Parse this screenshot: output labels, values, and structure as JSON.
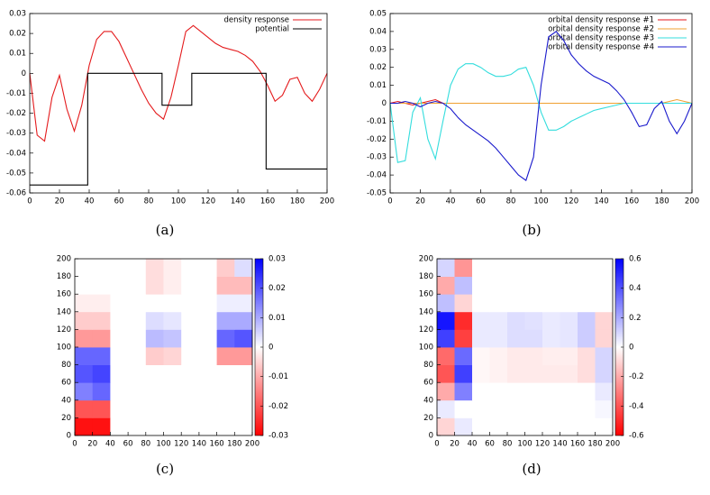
{
  "chart_data": [
    {
      "type": "line",
      "caption": "(a)",
      "legend": "top-right",
      "xlim": [
        0,
        200
      ],
      "ylim": [
        -0.06,
        0.03
      ],
      "xticks": [
        0,
        20,
        40,
        60,
        80,
        100,
        120,
        140,
        160,
        180,
        200
      ],
      "yticks": [
        -0.06,
        -0.05,
        -0.04,
        -0.03,
        -0.02,
        -0.01,
        0,
        0.01,
        0.02,
        0.03
      ],
      "x": [
        0,
        5,
        10,
        15,
        20,
        25,
        30,
        35,
        40,
        45,
        50,
        55,
        60,
        65,
        70,
        75,
        80,
        85,
        90,
        95,
        100,
        105,
        110,
        115,
        120,
        125,
        130,
        135,
        140,
        145,
        150,
        155,
        160,
        165,
        170,
        175,
        180,
        185,
        190,
        195,
        200
      ],
      "series": [
        {
          "name": "density response",
          "color": "#e41a1c",
          "values": [
            0,
            -0.031,
            -0.034,
            -0.012,
            -0.001,
            -0.018,
            -0.029,
            -0.016,
            0.004,
            0.017,
            0.021,
            0.021,
            0.016,
            0.008,
            0.0,
            -0.008,
            -0.015,
            -0.02,
            -0.023,
            -0.012,
            0.004,
            0.021,
            0.024,
            0.021,
            0.018,
            0.015,
            0.013,
            0.012,
            0.011,
            0.009,
            0.006,
            0.001,
            -0.006,
            -0.014,
            -0.011,
            -0.003,
            -0.002,
            -0.01,
            -0.014,
            -0.008,
            0
          ]
        },
        {
          "name": "potential",
          "color": "#000000",
          "x": [
            0,
            39,
            39,
            89,
            89,
            109,
            109,
            159,
            159,
            200
          ],
          "values": [
            -0.056,
            -0.056,
            0,
            0,
            -0.016,
            -0.016,
            0,
            0,
            -0.048,
            -0.048
          ]
        }
      ]
    },
    {
      "type": "line",
      "caption": "(b)",
      "legend": "top-right",
      "xlim": [
        0,
        200
      ],
      "ylim": [
        -0.05,
        0.05
      ],
      "xticks": [
        0,
        20,
        40,
        60,
        80,
        100,
        120,
        140,
        160,
        180,
        200
      ],
      "yticks": [
        -0.05,
        -0.04,
        -0.03,
        -0.02,
        -0.01,
        0,
        0.01,
        0.02,
        0.03,
        0.04,
        0.05
      ],
      "x": [
        0,
        5,
        10,
        15,
        20,
        25,
        30,
        35,
        40,
        45,
        50,
        55,
        60,
        65,
        70,
        75,
        80,
        85,
        90,
        95,
        100,
        105,
        110,
        115,
        120,
        125,
        130,
        135,
        140,
        145,
        150,
        155,
        160,
        165,
        170,
        175,
        180,
        185,
        190,
        195,
        200
      ],
      "series": [
        {
          "name": "orbital density response #1",
          "color": "#e41a1c",
          "values": [
            0,
            0.001,
            0,
            -0.001,
            0,
            0.001,
            0.002,
            0,
            0,
            0,
            0,
            0,
            0,
            0,
            0,
            0,
            0,
            0,
            0,
            0,
            0,
            0,
            0,
            0,
            0,
            0,
            0,
            0,
            0,
            0,
            0,
            0,
            0,
            0,
            0,
            0,
            0,
            0,
            0,
            0,
            0
          ]
        },
        {
          "name": "orbital density response #2",
          "color": "#f0a030",
          "values": [
            0,
            0,
            0,
            0,
            0,
            0,
            0,
            0,
            0,
            0,
            0,
            0,
            0,
            0,
            0,
            0,
            0,
            0,
            0,
            0,
            0,
            0,
            0,
            0,
            0,
            0,
            0,
            0,
            0,
            0,
            0,
            0,
            0,
            0,
            0,
            0,
            0,
            0.001,
            0.002,
            0.001,
            0
          ]
        },
        {
          "name": "orbital density response #3",
          "color": "#33dddd",
          "values": [
            0,
            -0.033,
            -0.032,
            -0.005,
            0.003,
            -0.02,
            -0.031,
            -0.01,
            0.01,
            0.019,
            0.022,
            0.022,
            0.02,
            0.017,
            0.015,
            0.015,
            0.016,
            0.019,
            0.02,
            0.01,
            -0.005,
            -0.015,
            -0.015,
            -0.013,
            -0.01,
            -0.008,
            -0.006,
            -0.004,
            -0.003,
            -0.002,
            -0.001,
            0,
            0,
            0,
            0,
            0,
            0,
            0,
            0,
            0,
            0
          ]
        },
        {
          "name": "orbital density response #4",
          "color": "#1a1acc",
          "values": [
            0,
            0,
            0.001,
            0,
            -0.002,
            0,
            0.001,
            0,
            -0.003,
            -0.008,
            -0.012,
            -0.015,
            -0.018,
            -0.021,
            -0.025,
            -0.03,
            -0.035,
            -0.04,
            -0.043,
            -0.03,
            0.01,
            0.037,
            0.04,
            0.035,
            0.027,
            0.022,
            0.018,
            0.015,
            0.013,
            0.011,
            0.007,
            0.002,
            -0.005,
            -0.013,
            -0.012,
            -0.003,
            0.001,
            -0.01,
            -0.017,
            -0.01,
            0
          ]
        }
      ]
    },
    {
      "type": "heatmap",
      "caption": "(c)",
      "xlim": [
        0,
        200
      ],
      "ylim": [
        0,
        200
      ],
      "zlim": [
        -0.03,
        0.03
      ],
      "colormap": [
        "#ff0000",
        "#ffffff",
        "#0000ff"
      ],
      "xticks": [
        0,
        20,
        40,
        60,
        80,
        100,
        120,
        140,
        160,
        180,
        200
      ],
      "yticks": [
        0,
        20,
        40,
        60,
        80,
        100,
        120,
        140,
        160,
        180,
        200
      ],
      "zticks": [
        -0.03,
        -0.02,
        -0.01,
        0,
        0.01,
        0.02,
        0.03
      ],
      "z": [
        [
          -0.028,
          -0.028,
          0,
          0,
          0,
          0,
          0,
          0,
          0,
          0
        ],
        [
          -0.02,
          -0.02,
          0,
          0,
          0,
          0,
          0,
          0,
          0,
          0
        ],
        [
          0.015,
          0.018,
          0,
          0,
          0,
          0,
          0,
          0,
          0,
          0
        ],
        [
          0.02,
          0.022,
          0,
          0,
          0,
          0,
          0,
          0,
          0,
          0
        ],
        [
          0.018,
          0.018,
          0,
          0,
          -0.006,
          -0.005,
          0,
          0,
          -0.012,
          -0.012
        ],
        [
          -0.012,
          -0.012,
          0,
          0,
          0.008,
          0.007,
          0,
          0,
          0.018,
          0.02
        ],
        [
          -0.006,
          -0.006,
          0,
          0,
          0.004,
          0.003,
          0,
          0,
          0.01,
          0.01
        ],
        [
          -0.002,
          -0.002,
          0,
          0,
          0,
          0,
          0,
          0,
          0.002,
          0.002
        ],
        [
          0,
          0,
          0,
          0,
          -0.004,
          -0.002,
          0,
          0,
          -0.008,
          -0.008
        ],
        [
          0,
          0,
          0,
          0,
          -0.004,
          -0.002,
          0,
          0,
          -0.006,
          0.004
        ]
      ]
    },
    {
      "type": "heatmap",
      "caption": "(d)",
      "xlim": [
        0,
        200
      ],
      "ylim": [
        0,
        200
      ],
      "zlim": [
        -0.6,
        0.6
      ],
      "colormap": [
        "#ff0000",
        "#ffffff",
        "#0000ff"
      ],
      "xticks": [
        0,
        20,
        40,
        60,
        80,
        100,
        120,
        140,
        160,
        180,
        200
      ],
      "yticks": [
        0,
        20,
        40,
        60,
        80,
        100,
        120,
        140,
        160,
        180,
        200
      ],
      "zticks": [
        -0.6,
        -0.4,
        -0.2,
        0,
        0.2,
        0.4,
        0.6
      ],
      "z": [
        [
          -0.1,
          0.05,
          0,
          0,
          0,
          0,
          0,
          0,
          0,
          0
        ],
        [
          0.05,
          0,
          0,
          0,
          0,
          0,
          0,
          0,
          0,
          0.02
        ],
        [
          -0.2,
          0.3,
          0,
          0,
          0,
          0,
          0,
          0,
          0,
          0.05
        ],
        [
          -0.4,
          0.45,
          -0.02,
          -0.03,
          -0.05,
          -0.05,
          -0.05,
          -0.05,
          -0.08,
          0.1
        ],
        [
          -0.35,
          0.35,
          -0.02,
          -0.03,
          -0.05,
          -0.05,
          -0.04,
          -0.04,
          -0.08,
          0.1
        ],
        [
          0.45,
          -0.45,
          0.05,
          0.05,
          0.08,
          0.08,
          0.05,
          0.06,
          0.12,
          -0.1
        ],
        [
          0.55,
          -0.5,
          0.05,
          0.05,
          0.08,
          0.07,
          0.05,
          0.06,
          0.12,
          -0.1
        ],
        [
          0.15,
          -0.1,
          0,
          0,
          0,
          0,
          0,
          0,
          0,
          0
        ],
        [
          -0.2,
          0.15,
          0,
          0,
          0,
          0,
          0,
          0,
          0,
          0
        ],
        [
          0.1,
          -0.25,
          0,
          0,
          0,
          0,
          0,
          0,
          0,
          0
        ]
      ]
    }
  ]
}
